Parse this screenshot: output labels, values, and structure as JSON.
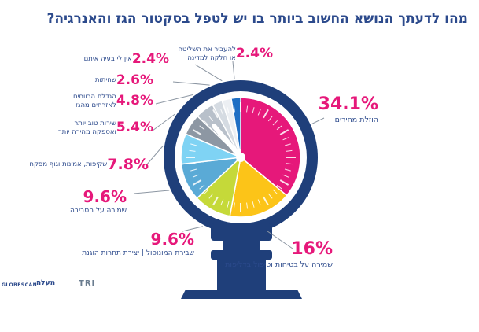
{
  "title": "מהו לדעתך הנושא החשוב ביותר בו יש לטפל בסקטור הגז והאנרגיה?",
  "chart_data": {
    "type": "pie",
    "title": "מהו לדעתך הנושא החשוב ביותר בו יש לטפל בסקטור הגז והאנרגיה?",
    "unit": "%",
    "slices": [
      {
        "label": "הוזלת מחירים",
        "value": 34.1,
        "value_label": "34.1%",
        "color": "#e6187a"
      },
      {
        "label": "שמירה על בטיחות וטיפול בדליפות",
        "value": 16,
        "value_label": "16%",
        "color": "#fcc418"
      },
      {
        "label": "שבירת המונופול | יצירת תחרות הוגנת",
        "value": 9.6,
        "value_label": "9.6%",
        "color": "#c5d939"
      },
      {
        "label": "שמירה על הסביבה",
        "value": 9.6,
        "value_label": "9.6%",
        "color": "#5aaad6"
      },
      {
        "label": "שקיפות, אמינות וגוף מפקח",
        "value": 7.8,
        "value_label": "7.8%",
        "color": "#7fd3f4"
      },
      {
        "label": "שירות טוב יותר ואספקה מהירה יותר",
        "value": 5.4,
        "value_label": "5.4%",
        "color": "#8d97a3"
      },
      {
        "label": "הגדלת הרווחים לאזרחים מהגז",
        "value": 4.8,
        "value_label": "4.8%",
        "color": "#b8c0ca"
      },
      {
        "label": "שחיתות",
        "value": 2.6,
        "value_label": "2.6%",
        "color": "#d5dbe2"
      },
      {
        "label": "אין לי בעיה איתם",
        "value": 2.4,
        "value_label": "2.4%",
        "color": "#eceff3"
      },
      {
        "label": "להעביר את השליטה או חלקה למדינה",
        "value": 2.4,
        "value_label": "2.4%",
        "color": "#1f6fc4"
      }
    ]
  },
  "labels": {
    "l0": {
      "pct": "34.1%",
      "desc": "הוזלת מחירים"
    },
    "l1": {
      "pct": "16%",
      "desc": "שמירה על בטיחות וטיפול בדליפות"
    },
    "l2": {
      "pct": "9.6%",
      "desc": "שבירת המונופול | יצירת תחרות הוגנת"
    },
    "l3": {
      "pct": "9.6%",
      "desc": "שמירה על הסביבה"
    },
    "l4": {
      "pct": "7.8%",
      "desc": "שקיפות, אמינות וגוף מפקח"
    },
    "l5": {
      "pct": "5.4%",
      "desc1": "שירות טוב יותר",
      "desc2": "ואספקה מהירה יותר"
    },
    "l6": {
      "pct": "4.8%",
      "desc1": "הגדלת הרווחים",
      "desc2": "לאזרחים מהגז"
    },
    "l7": {
      "pct": "2.6%",
      "desc": "שחיתות"
    },
    "l8": {
      "pct": "2.4%",
      "desc": "אין לי בעיה איתם"
    },
    "l9": {
      "pct": "2.4%",
      "desc1": "להעביר את השליטה",
      "desc2": "או חלקה למדינה"
    }
  },
  "logos": {
    "globescan": "GLOBESCAN",
    "maala": "מעלה",
    "tri": "TRI"
  },
  "colors": {
    "title": "#2c4a8c",
    "accent": "#e6187a",
    "gauge_body": "#1f3f7a"
  }
}
